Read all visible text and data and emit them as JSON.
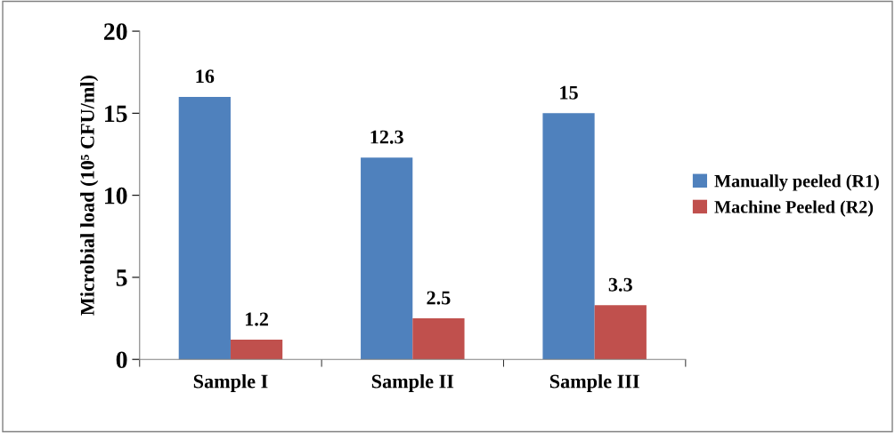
{
  "chart_data": {
    "type": "bar",
    "ylabel": "Microbial load (10⁵ CFU/ml)",
    "categories": [
      "Sample I",
      "Sample II",
      "Sample III"
    ],
    "series": [
      {
        "name": "Manually peeled (R1)",
        "color": "#4f81bd",
        "values": [
          16,
          12.3,
          15
        ]
      },
      {
        "name": "Machine Peeled (R2)",
        "color": "#c0504d",
        "values": [
          1.2,
          2.5,
          3.3
        ]
      }
    ],
    "ylim": [
      0,
      20
    ],
    "yticks": [
      0,
      5,
      10,
      15,
      20
    ],
    "grid": false,
    "legend": "right",
    "data_labels": true
  }
}
